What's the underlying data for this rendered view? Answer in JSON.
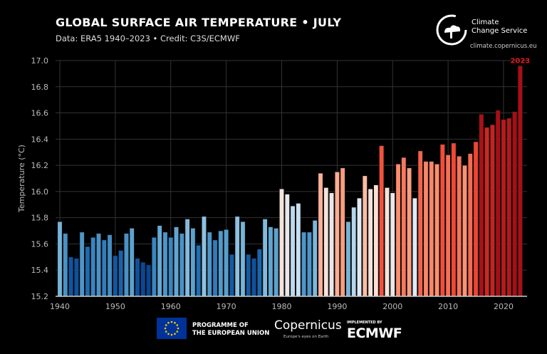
{
  "header": {
    "title": "GLOBAL SURFACE AIR TEMPERATURE • JULY",
    "subtitle": "Data: ERA5 1940–2023 • Credit: C3S/ECMWF"
  },
  "branding": {
    "service_line1": "Climate",
    "service_line2": "Change Service",
    "url": "climate.copernicus.eu",
    "eu_line1": "PROGRAMME OF",
    "eu_line2": "THE EUROPEAN UNION",
    "copernicus": "Copernicus",
    "copernicus_tagline": "Europe's eyes on Earth",
    "ecmwf_implemented": "IMPLEMENTED BY",
    "ecmwf": "ECMWF"
  },
  "chart_data": {
    "type": "bar",
    "title": "GLOBAL SURFACE AIR TEMPERATURE • JULY",
    "xlabel": "",
    "ylabel": "Temperature (°C)",
    "ylim": [
      15.2,
      17.0
    ],
    "xlim": [
      1939,
      2024
    ],
    "yticks": [
      15.2,
      15.4,
      15.6,
      15.8,
      16.0,
      16.2,
      16.4,
      16.6,
      16.8,
      17.0
    ],
    "xticks": [
      1940,
      1950,
      1960,
      1970,
      1980,
      1990,
      2000,
      2010,
      2020
    ],
    "grid": true,
    "colormap": "diverging blue-white-red",
    "colors": {
      "cold": "#08519c",
      "neutral": "#f7f7f7",
      "warm": "#b2182b",
      "label": "#e3161c"
    },
    "annotation": "2023",
    "x": [
      1940,
      1941,
      1942,
      1943,
      1944,
      1945,
      1946,
      1947,
      1948,
      1949,
      1950,
      1951,
      1952,
      1953,
      1954,
      1955,
      1956,
      1957,
      1958,
      1959,
      1960,
      1961,
      1962,
      1963,
      1964,
      1965,
      1966,
      1967,
      1968,
      1969,
      1970,
      1971,
      1972,
      1973,
      1974,
      1975,
      1976,
      1977,
      1978,
      1979,
      1980,
      1981,
      1982,
      1983,
      1984,
      1985,
      1986,
      1987,
      1988,
      1989,
      1990,
      1991,
      1992,
      1993,
      1994,
      1995,
      1996,
      1997,
      1998,
      1999,
      2000,
      2001,
      2002,
      2003,
      2004,
      2005,
      2006,
      2007,
      2008,
      2009,
      2010,
      2011,
      2012,
      2013,
      2014,
      2015,
      2016,
      2017,
      2018,
      2019,
      2020,
      2021,
      2022,
      2023
    ],
    "values": [
      15.77,
      15.68,
      15.5,
      15.49,
      15.69,
      15.58,
      15.65,
      15.68,
      15.63,
      15.67,
      15.51,
      15.55,
      15.68,
      15.72,
      15.49,
      15.46,
      15.44,
      15.65,
      15.74,
      15.69,
      15.65,
      15.73,
      15.68,
      15.79,
      15.72,
      15.59,
      15.81,
      15.69,
      15.63,
      15.7,
      15.71,
      15.52,
      15.81,
      15.77,
      15.52,
      15.49,
      15.56,
      15.79,
      15.73,
      15.72,
      16.02,
      15.98,
      15.89,
      15.91,
      15.69,
      15.69,
      15.78,
      16.14,
      16.03,
      15.99,
      16.15,
      16.18,
      15.77,
      15.88,
      15.95,
      16.12,
      16.02,
      16.05,
      16.35,
      16.03,
      15.99,
      16.21,
      16.26,
      16.18,
      15.95,
      16.31,
      16.23,
      16.23,
      16.21,
      16.36,
      16.28,
      16.37,
      16.27,
      16.2,
      16.29,
      16.38,
      16.59,
      16.49,
      16.51,
      16.62,
      16.55,
      16.56,
      16.61,
      16.96
    ]
  }
}
